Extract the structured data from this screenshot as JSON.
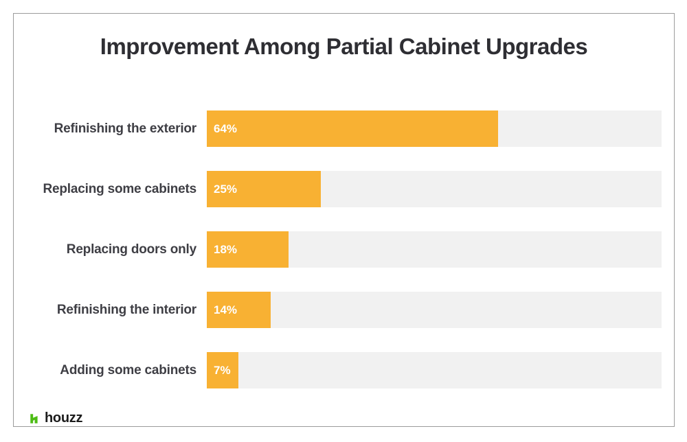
{
  "chart_data": {
    "type": "bar",
    "orientation": "horizontal",
    "title": "Improvement Among Partial Cabinet Upgrades",
    "categories": [
      "Refinishing the exterior",
      "Replacing some cabinets",
      "Replacing doors only",
      "Refinishing the interior",
      "Adding some cabinets"
    ],
    "values": [
      64,
      25,
      18,
      14,
      7
    ],
    "value_labels": [
      "64%",
      "25%",
      "18%",
      "14%",
      "7%"
    ],
    "xlim": [
      0,
      100
    ],
    "grid": false,
    "legend": false,
    "bar_color": "#F8B133",
    "track_color": "#F1F1F1",
    "value_label_color": "#FFFFFF",
    "category_label_color": "#3E3E44",
    "title_color": "#2E2E33"
  },
  "branding": {
    "logo_text": "houzz",
    "logo_icon": "houzz-h-icon",
    "logo_icon_color": "#4DBC15",
    "logo_text_color": "#1C1C1C"
  },
  "frame": {
    "border_color": "#9B9B9B",
    "background": "#FFFFFF"
  }
}
